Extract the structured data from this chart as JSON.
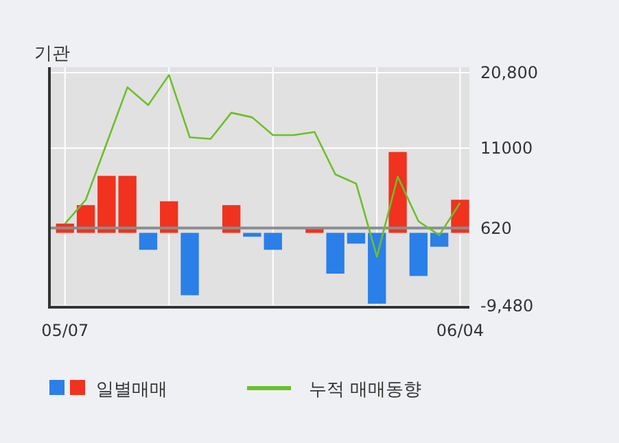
{
  "chart_data": {
    "type": "bar",
    "title": "기관",
    "categories": [
      "05/07",
      null,
      null,
      null,
      null,
      null,
      null,
      null,
      null,
      null,
      null,
      null,
      null,
      null,
      null,
      null,
      null,
      null,
      null,
      "06/04"
    ],
    "series": [
      {
        "name": "일별매매",
        "colors": [
          "#f0321e",
          "#f0321e",
          "#f0321e",
          "#f0321e",
          "#2b7fe8",
          "#f0321e",
          "#2b7fe8",
          "#f0321e",
          "#f0321e",
          "#2b7fe8",
          "#2b7fe8",
          "#f0321e",
          "#f0321e",
          "#2b7fe8",
          "#2b7fe8",
          "#2b7fe8",
          "#f0321e",
          "#2b7fe8",
          "#2b7fe8",
          "#f0321e"
        ],
        "values": [
          1200,
          3600,
          7400,
          7400,
          -2200,
          4100,
          -8100,
          0,
          3600,
          -500,
          -2200,
          0,
          500,
          -5300,
          -1400,
          -9200,
          10500,
          -5600,
          -1800,
          4300
        ]
      },
      {
        "name": "누적 매매동향",
        "type": "line",
        "color": "#6cbf2a",
        "values": [
          1200,
          4300,
          11600,
          18900,
          16600,
          20500,
          12400,
          12200,
          15600,
          15000,
          12700,
          12700,
          13100,
          7600,
          6400,
          -3100,
          7300,
          1500,
          -300,
          3900
        ]
      }
    ],
    "ylim": [
      -9480,
      20800
    ],
    "yticks": [
      {
        "value": 20800,
        "label": "20,800"
      },
      11000,
      620,
      {
        "value": -9480,
        "label": "-9,480"
      }
    ],
    "ref_lines": [
      {
        "axis": "y",
        "value": 620,
        "color": "#8c8c8c"
      }
    ],
    "grid": true,
    "legend": "bottom"
  }
}
